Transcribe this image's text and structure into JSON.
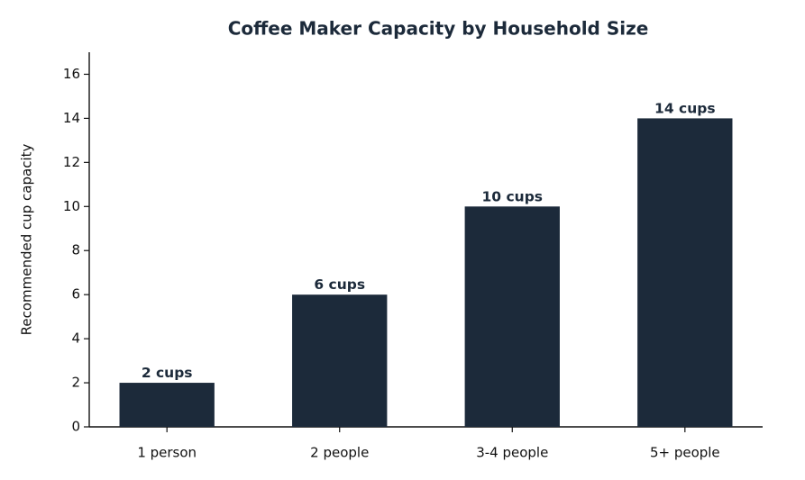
{
  "chart_data": {
    "type": "bar",
    "title": "Coffee Maker Capacity by Household Size",
    "ylabel": "Recommended cup capacity",
    "categories": [
      "1 person",
      "2 people",
      "3-4 people",
      "5+ people"
    ],
    "values": [
      2,
      6,
      10,
      14
    ],
    "value_labels": [
      "2 cups",
      "6 cups",
      "10 cups",
      "14 cups"
    ],
    "color": "#1c2a3a",
    "ylim": [
      0,
      17
    ],
    "yticks": [
      0,
      2,
      4,
      6,
      8,
      10,
      12,
      14,
      16
    ],
    "grid": false
  }
}
